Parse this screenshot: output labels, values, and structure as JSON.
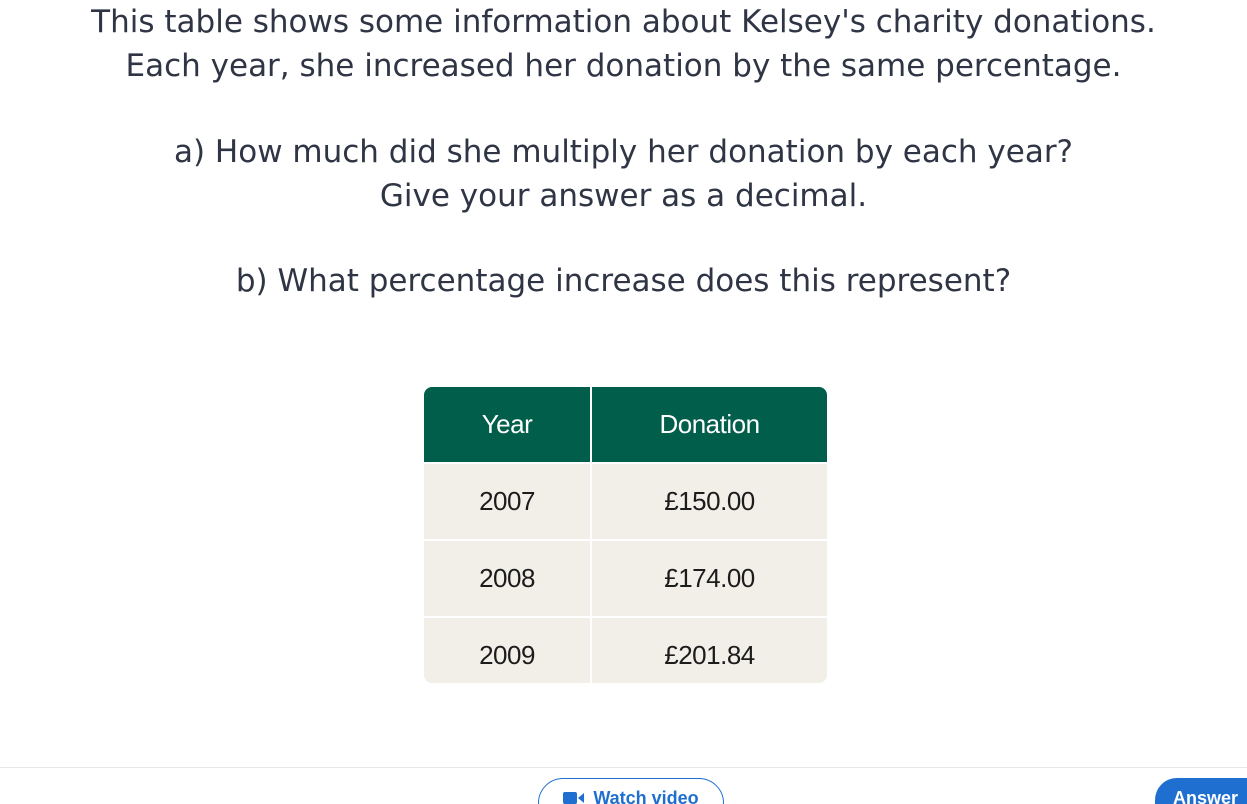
{
  "question": {
    "intro_line1": "This table shows some information about Kelsey's charity donations.",
    "intro_line2": "Each year, she increased her donation by the same percentage.",
    "part_a_line1": "a) How much did she multiply her donation by each year?",
    "part_a_line2": "Give your answer as a decimal.",
    "part_b": "b) What percentage increase does this represent?"
  },
  "table": {
    "headers": [
      "Year",
      "Donation"
    ],
    "rows": [
      [
        "2007",
        "£150.00"
      ],
      [
        "2008",
        "£174.00"
      ],
      [
        "2009",
        "£201.84"
      ]
    ],
    "header_color": "#005e4b",
    "cell_color": "#f2efe9"
  },
  "footer": {
    "watch_video_label": "Watch video",
    "watch_video_icon": "video-camera-icon",
    "answer_label": "Answer",
    "accent_color": "#1f6fd1"
  }
}
